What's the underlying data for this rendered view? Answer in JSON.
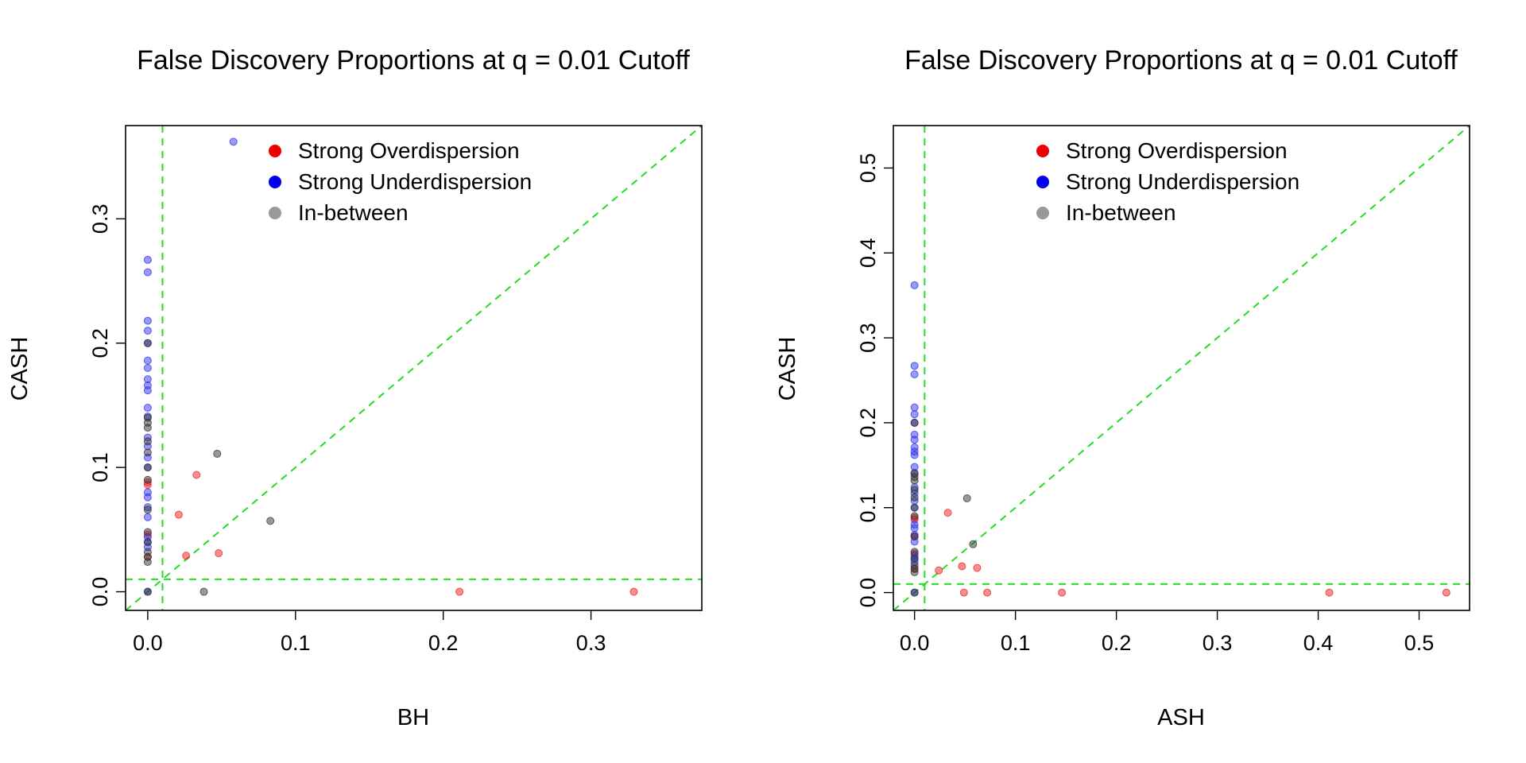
{
  "chart_data": [
    {
      "type": "scatter",
      "title": "False Discovery Proportions at q = 0.01 Cutoff",
      "xlabel": "BH",
      "ylabel": "CASH",
      "xlim": [
        -0.015,
        0.375
      ],
      "ylim": [
        -0.015,
        0.375
      ],
      "x_ticks": [
        0.0,
        0.1,
        0.2,
        0.3
      ],
      "x_tick_labels": [
        "0.0",
        "0.1",
        "0.2",
        "0.3"
      ],
      "y_ticks": [
        0.0,
        0.1,
        0.2,
        0.3
      ],
      "y_tick_labels": [
        "0.0",
        "0.1",
        "0.2",
        "0.3"
      ],
      "reference_lines": {
        "diagonal": true,
        "vline_x": 0.01,
        "hline_y": 0.01,
        "color": "#22dd22"
      },
      "legend": {
        "position": "top-center",
        "entries": [
          {
            "label": "Strong Overdispersion",
            "color": "#ee0000"
          },
          {
            "label": "Strong Underdispersion",
            "color": "#0000ee"
          },
          {
            "label": "In-between",
            "color": "#999999"
          }
        ]
      },
      "series": [
        {
          "name": "Strong Overdispersion",
          "color": "#ee2222",
          "points": [
            [
              0,
              0.088
            ],
            [
              0,
              0.086
            ],
            [
              0,
              0.046
            ],
            [
              0,
              0.028
            ],
            [
              0.021,
              0.062
            ],
            [
              0.026,
              0.029
            ],
            [
              0.033,
              0.094
            ],
            [
              0.048,
              0.031
            ],
            [
              0.211,
              0.0
            ],
            [
              0.329,
              0.0
            ]
          ]
        },
        {
          "name": "Strong Underdispersion",
          "color": "#3333ee",
          "points": [
            [
              0.058,
              0.362
            ],
            [
              0,
              0.267
            ],
            [
              0,
              0.257
            ],
            [
              0,
              0.218
            ],
            [
              0,
              0.21
            ],
            [
              0,
              0.2
            ],
            [
              0,
              0.186
            ],
            [
              0,
              0.18
            ],
            [
              0,
              0.171
            ],
            [
              0,
              0.166
            ],
            [
              0,
              0.162
            ],
            [
              0,
              0.148
            ],
            [
              0,
              0.141
            ],
            [
              0,
              0.124
            ],
            [
              0,
              0.117
            ],
            [
              0,
              0.108
            ],
            [
              0,
              0.1
            ],
            [
              0,
              0.08
            ],
            [
              0,
              0.076
            ],
            [
              0,
              0.068
            ],
            [
              0,
              0.06
            ],
            [
              0,
              0.044
            ],
            [
              0,
              0.04
            ],
            [
              0,
              0.036
            ],
            [
              0,
              0.0
            ]
          ]
        },
        {
          "name": "In-between",
          "color": "#333333",
          "points": [
            [
              0,
              0.2
            ],
            [
              0,
              0.14
            ],
            [
              0,
              0.136
            ],
            [
              0,
              0.132
            ],
            [
              0,
              0.121
            ],
            [
              0,
              0.112
            ],
            [
              0,
              0.1
            ],
            [
              0,
              0.09
            ],
            [
              0,
              0.066
            ],
            [
              0,
              0.048
            ],
            [
              0,
              0.04
            ],
            [
              0,
              0.032
            ],
            [
              0,
              0.028
            ],
            [
              0,
              0.024
            ],
            [
              0,
              0.0
            ],
            [
              0.047,
              0.111
            ],
            [
              0.083,
              0.057
            ],
            [
              0.038,
              0.0
            ]
          ]
        }
      ]
    },
    {
      "type": "scatter",
      "title": "False Discovery Proportions at q = 0.01 Cutoff",
      "xlabel": "ASH",
      "ylabel": "CASH",
      "xlim": [
        -0.021,
        0.55
      ],
      "ylim": [
        -0.021,
        0.55
      ],
      "x_ticks": [
        0.0,
        0.1,
        0.2,
        0.3,
        0.4,
        0.5
      ],
      "x_tick_labels": [
        "0.0",
        "0.1",
        "0.2",
        "0.3",
        "0.4",
        "0.5"
      ],
      "y_ticks": [
        0.0,
        0.1,
        0.2,
        0.3,
        0.4,
        0.5
      ],
      "y_tick_labels": [
        "0.0",
        "0.1",
        "0.2",
        "0.3",
        "0.4",
        "0.5"
      ],
      "reference_lines": {
        "diagonal": true,
        "vline_x": 0.01,
        "hline_y": 0.01,
        "color": "#22dd22"
      },
      "legend": {
        "position": "top-center",
        "entries": [
          {
            "label": "Strong Overdispersion",
            "color": "#ee0000"
          },
          {
            "label": "Strong Underdispersion",
            "color": "#0000ee"
          },
          {
            "label": "In-between",
            "color": "#999999"
          }
        ]
      },
      "series": [
        {
          "name": "Strong Overdispersion",
          "color": "#ee2222",
          "points": [
            [
              0,
              0.088
            ],
            [
              0,
              0.086
            ],
            [
              0,
              0.066
            ],
            [
              0,
              0.046
            ],
            [
              0,
              0.028
            ],
            [
              0.024,
              0.026
            ],
            [
              0.033,
              0.094
            ],
            [
              0.047,
              0.031
            ],
            [
              0.062,
              0.029
            ],
            [
              0.049,
              0.0
            ],
            [
              0.072,
              0.0
            ],
            [
              0.146,
              0.0
            ],
            [
              0.411,
              0.0
            ],
            [
              0.527,
              0.0
            ]
          ]
        },
        {
          "name": "Strong Underdispersion",
          "color": "#3333ee",
          "points": [
            [
              0,
              0.362
            ],
            [
              0,
              0.267
            ],
            [
              0,
              0.257
            ],
            [
              0,
              0.218
            ],
            [
              0,
              0.21
            ],
            [
              0,
              0.2
            ],
            [
              0,
              0.186
            ],
            [
              0,
              0.18
            ],
            [
              0,
              0.171
            ],
            [
              0,
              0.166
            ],
            [
              0,
              0.162
            ],
            [
              0,
              0.148
            ],
            [
              0,
              0.141
            ],
            [
              0,
              0.124
            ],
            [
              0,
              0.117
            ],
            [
              0,
              0.108
            ],
            [
              0,
              0.1
            ],
            [
              0,
              0.08
            ],
            [
              0,
              0.076
            ],
            [
              0,
              0.068
            ],
            [
              0,
              0.06
            ],
            [
              0,
              0.044
            ],
            [
              0,
              0.04
            ],
            [
              0,
              0.036
            ],
            [
              0,
              0.0
            ]
          ]
        },
        {
          "name": "In-between",
          "color": "#333333",
          "points": [
            [
              0,
              0.2
            ],
            [
              0,
              0.14
            ],
            [
              0,
              0.136
            ],
            [
              0,
              0.132
            ],
            [
              0,
              0.121
            ],
            [
              0,
              0.112
            ],
            [
              0,
              0.1
            ],
            [
              0,
              0.09
            ],
            [
              0,
              0.066
            ],
            [
              0,
              0.048
            ],
            [
              0,
              0.04
            ],
            [
              0,
              0.032
            ],
            [
              0,
              0.028
            ],
            [
              0,
              0.024
            ],
            [
              0,
              0.0
            ],
            [
              0.052,
              0.111
            ],
            [
              0.058,
              0.057
            ]
          ]
        }
      ]
    }
  ]
}
